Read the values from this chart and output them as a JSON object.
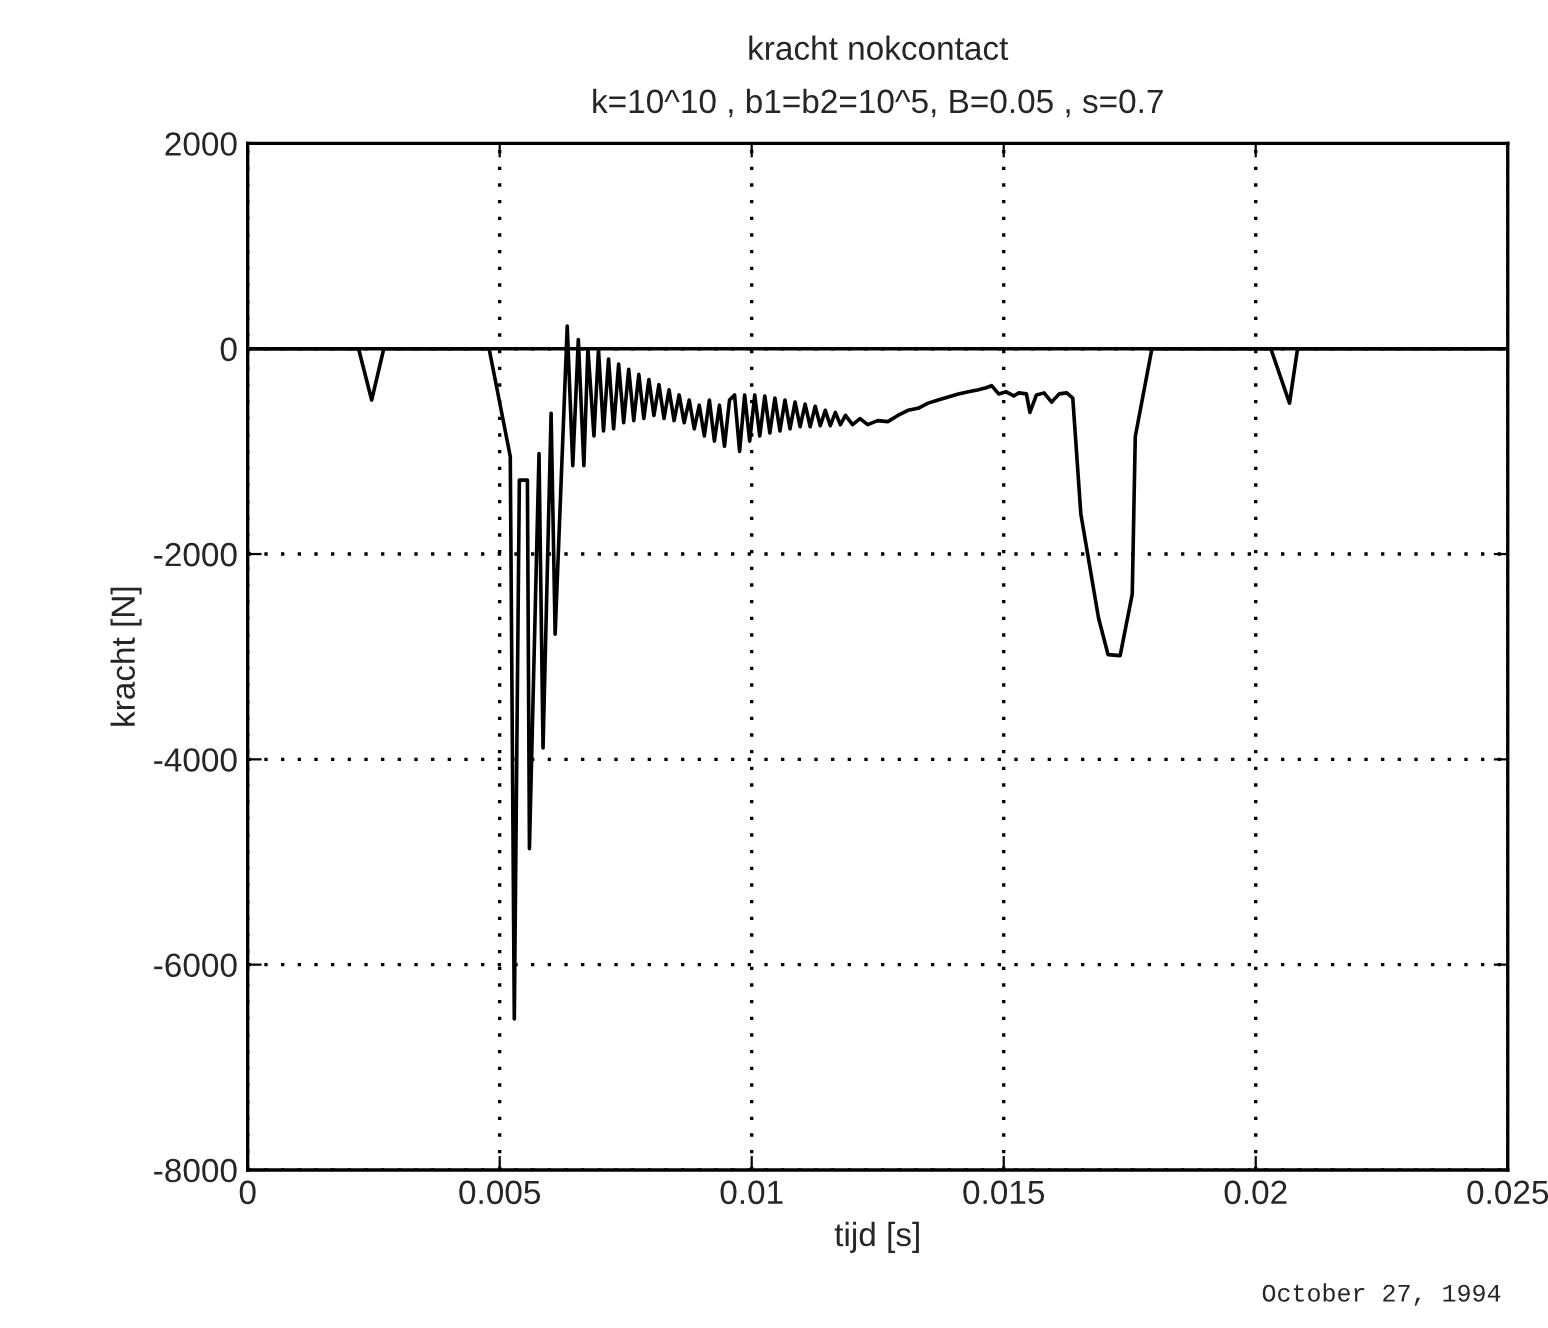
{
  "chart_data": {
    "type": "line",
    "title": "kracht nokcontact",
    "subtitle": "k=10^10 , b1=b2=10^5, B=0.05 , s=0.7",
    "xlabel": "tijd [s]",
    "ylabel": "kracht [N]",
    "annotations": [
      "October 27, 1994"
    ],
    "series": [
      {
        "color": "#000000",
        "x": [
          0,
          0.0022,
          0.00246,
          0.0027,
          0.00479,
          0.00521,
          0.00529,
          0.00539,
          0.00555,
          0.00559,
          0.00578,
          0.00586,
          0.00602,
          0.0061,
          0.00634,
          0.00645,
          0.00656,
          0.00667,
          0.00675,
          0.00687,
          0.00696,
          0.00706,
          0.00716,
          0.00726,
          0.00736,
          0.00746,
          0.00756,
          0.00766,
          0.00776,
          0.00786,
          0.00796,
          0.00806,
          0.00816,
          0.00826,
          0.00836,
          0.00846,
          0.00856,
          0.00866,
          0.00876,
          0.00886,
          0.00896,
          0.00906,
          0.00916,
          0.00926,
          0.00936,
          0.00946,
          0.00956,
          0.00966,
          0.00976,
          0.00986,
          0.00996,
          0.01006,
          0.01016,
          0.01026,
          0.01036,
          0.01046,
          0.01056,
          0.01066,
          0.01076,
          0.01086,
          0.01096,
          0.01106,
          0.01116,
          0.01126,
          0.01136,
          0.01146,
          0.01156,
          0.01166,
          0.01176,
          0.01186,
          0.012,
          0.01215,
          0.0123,
          0.0125,
          0.0127,
          0.0129,
          0.0131,
          0.0133,
          0.0135,
          0.0137,
          0.0139,
          0.0141,
          0.0143,
          0.0145,
          0.01465,
          0.01476,
          0.0149,
          0.01505,
          0.0152,
          0.0153,
          0.01545,
          0.01552,
          0.01565,
          0.0158,
          0.01595,
          0.0161,
          0.01625,
          0.01637,
          0.01653,
          0.01688,
          0.01707,
          0.01731,
          0.01755,
          0.01761,
          0.01794,
          0.0203,
          0.02067,
          0.02083,
          0.025
        ],
        "values": [
          0,
          0,
          -500,
          0,
          0,
          -1050,
          -6530,
          -1280,
          -1280,
          -4870,
          -1020,
          -3890,
          -630,
          -2780,
          220,
          -1140,
          90,
          -1140,
          0,
          -850,
          -10,
          -800,
          -100,
          -780,
          -150,
          -720,
          -200,
          -700,
          -250,
          -680,
          -300,
          -650,
          -350,
          -680,
          -400,
          -700,
          -450,
          -720,
          -500,
          -780,
          -550,
          -850,
          -500,
          -900,
          -550,
          -950,
          -500,
          -450,
          -1000,
          -450,
          -900,
          -450,
          -850,
          -460,
          -820,
          -480,
          -800,
          -500,
          -780,
          -520,
          -760,
          -540,
          -760,
          -560,
          -750,
          -600,
          -750,
          -620,
          -740,
          -650,
          -740,
          -680,
          -740,
          -700,
          -710,
          -650,
          -600,
          -580,
          -530,
          -500,
          -470,
          -440,
          -420,
          -400,
          -380,
          -360,
          -440,
          -420,
          -460,
          -430,
          -440,
          -620,
          -450,
          -430,
          -520,
          -440,
          -430,
          -480,
          -1610,
          -2620,
          -2980,
          -2990,
          -2390,
          -855,
          0,
          0,
          -530,
          0,
          0
        ]
      }
    ],
    "xlim": [
      0,
      0.025
    ],
    "xticks": [
      0,
      0.005,
      0.01,
      0.015,
      0.02,
      0.025
    ],
    "ylim": [
      -8000,
      2000
    ],
    "yticks": [
      -8000,
      -6000,
      -4000,
      -2000,
      0,
      2000
    ],
    "ref_lines": [
      {
        "axis": "y",
        "value": 0,
        "color": "#000000",
        "line_style": "solid"
      }
    ],
    "grid": true,
    "line_style": "solid",
    "marker": "none",
    "legend": false
  }
}
